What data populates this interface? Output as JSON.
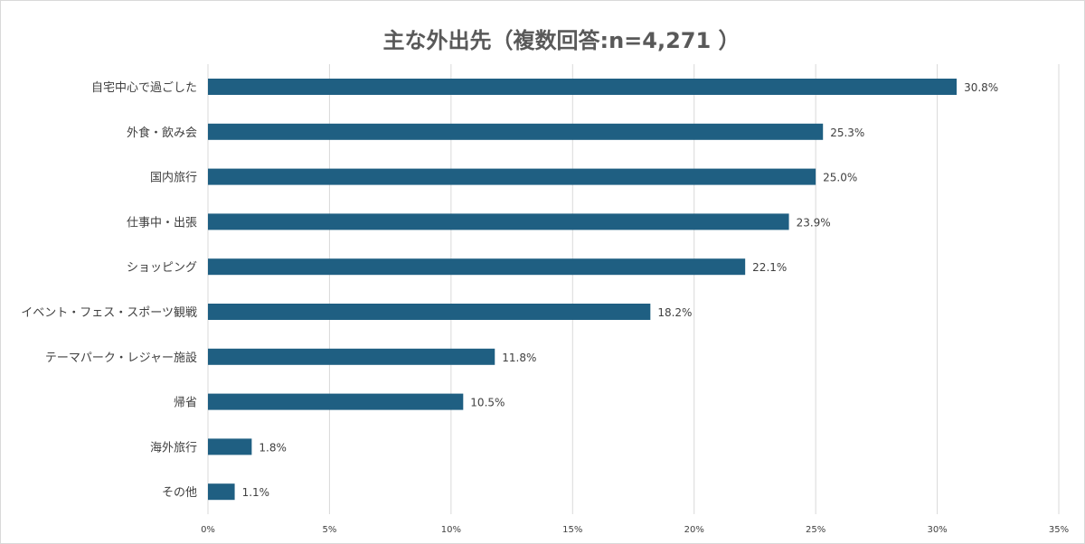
{
  "chart_data": {
    "type": "bar",
    "orientation": "horizontal",
    "title": "主な外出先（複数回答:n=4,271 ）",
    "categories": [
      "自宅中心で過ごした",
      "外食・飲み会",
      "国内旅行",
      "仕事中・出張",
      "ショッピング",
      "イベント・フェス・スポーツ観戦",
      "テーマパーク・レジャー施設",
      "帰省",
      "海外旅行",
      "その他"
    ],
    "values": [
      30.8,
      25.3,
      25.0,
      23.9,
      22.1,
      18.2,
      11.8,
      10.5,
      1.8,
      1.1
    ],
    "data_labels": [
      "30.8%",
      "25.3%",
      "25.0%",
      "23.9%",
      "22.1%",
      "18.2%",
      "11.8%",
      "10.5%",
      "1.8%",
      "1.1%"
    ],
    "xlim": [
      0,
      35
    ],
    "x_ticks": [
      0,
      5,
      10,
      15,
      20,
      25,
      30,
      35
    ],
    "x_tick_labels": [
      "0%",
      "5%",
      "10%",
      "15%",
      "20%",
      "25%",
      "30%",
      "35%"
    ],
    "xlabel": "",
    "ylabel": "",
    "grid": "vertical",
    "legend": "none",
    "bar_color": "#1f5f82"
  }
}
